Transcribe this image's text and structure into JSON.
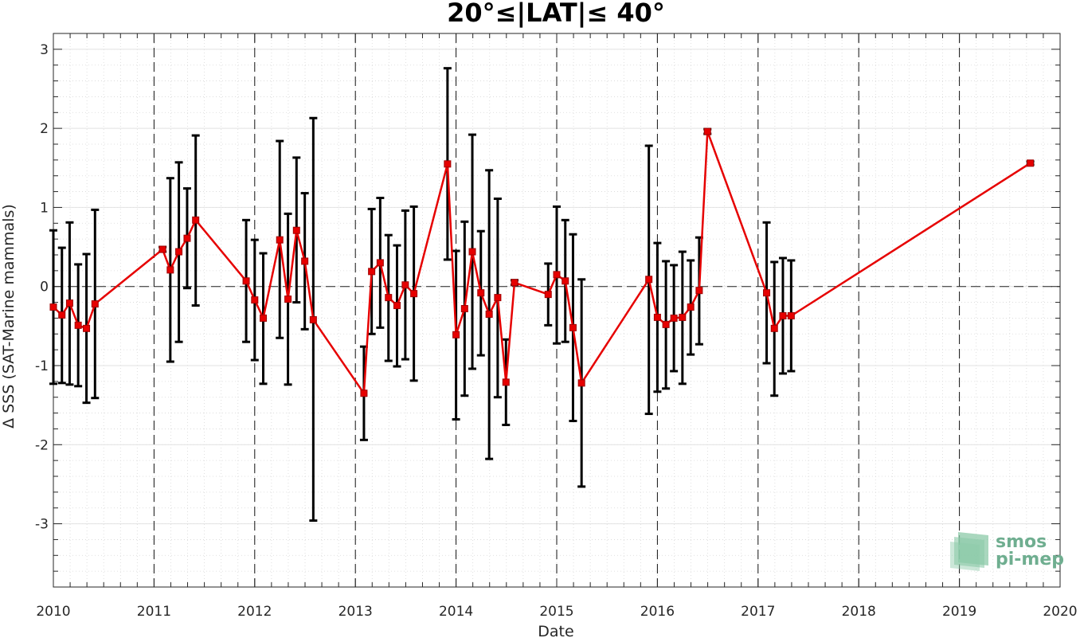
{
  "chart_data": {
    "type": "line",
    "title": "20°≤|LAT|≤ 40°",
    "xlabel": "Date",
    "ylabel": "Δ SSS (SAT-Marine mammals)",
    "xlim": [
      "2010-01-01",
      "2020-01-01"
    ],
    "ylim": [
      -3.8,
      3.2
    ],
    "x_ticks": [
      "2010",
      "2011",
      "2012",
      "2013",
      "2014",
      "2015",
      "2016",
      "2017",
      "2018",
      "2019",
      "2020"
    ],
    "y_ticks": [
      "-3",
      "-2",
      "-1",
      "0",
      "1",
      "2",
      "3"
    ],
    "grid": true,
    "zero_line": true,
    "year_separators": true,
    "series_color": "#e60000",
    "errorbar_color": "#000000",
    "series": [
      {
        "points": [
          {
            "date": "2010-01-01",
            "y": -0.26,
            "lo": -1.23,
            "hi": 0.71
          },
          {
            "date": "2010-02-01",
            "y": -0.36,
            "lo": -1.22,
            "hi": 0.49
          },
          {
            "date": "2010-03-01",
            "y": -0.21,
            "lo": -1.24,
            "hi": 0.81
          },
          {
            "date": "2010-04-01",
            "y": -0.49,
            "lo": -1.26,
            "hi": 0.28
          },
          {
            "date": "2010-05-01",
            "y": -0.53,
            "lo": -1.47,
            "hi": 0.41
          },
          {
            "date": "2010-06-01",
            "y": -0.22,
            "lo": -1.41,
            "hi": 0.97
          },
          {
            "date": "2011-02-01",
            "y": 0.47,
            "lo": 0.44,
            "hi": 0.5
          },
          {
            "date": "2011-03-01",
            "y": 0.21,
            "lo": -0.95,
            "hi": 1.37
          },
          {
            "date": "2011-04-01",
            "y": 0.44,
            "lo": -0.7,
            "hi": 1.57
          },
          {
            "date": "2011-05-01",
            "y": 0.61,
            "lo": -0.02,
            "hi": 1.24
          },
          {
            "date": "2011-06-01",
            "y": 0.84,
            "lo": -0.24,
            "hi": 1.91
          },
          {
            "date": "2011-12-01",
            "y": 0.07,
            "lo": -0.7,
            "hi": 0.84
          },
          {
            "date": "2012-01-01",
            "y": -0.17,
            "lo": -0.93,
            "hi": 0.59
          },
          {
            "date": "2012-02-01",
            "y": -0.4,
            "lo": -1.23,
            "hi": 0.42
          },
          {
            "date": "2012-04-01",
            "y": 0.59,
            "lo": -0.65,
            "hi": 1.84
          },
          {
            "date": "2012-05-01",
            "y": -0.16,
            "lo": -1.24,
            "hi": 0.92
          },
          {
            "date": "2012-06-01",
            "y": 0.71,
            "lo": -0.2,
            "hi": 1.63
          },
          {
            "date": "2012-07-01",
            "y": 0.32,
            "lo": -0.54,
            "hi": 1.18
          },
          {
            "date": "2012-08-01",
            "y": -0.42,
            "lo": -2.96,
            "hi": 2.13
          },
          {
            "date": "2013-02-01",
            "y": -1.35,
            "lo": -1.94,
            "hi": -0.76
          },
          {
            "date": "2013-03-01",
            "y": 0.19,
            "lo": -0.6,
            "hi": 0.98
          },
          {
            "date": "2013-04-01",
            "y": 0.3,
            "lo": -0.52,
            "hi": 1.12
          },
          {
            "date": "2013-05-01",
            "y": -0.14,
            "lo": -0.94,
            "hi": 0.65
          },
          {
            "date": "2013-06-01",
            "y": -0.24,
            "lo": -1.01,
            "hi": 0.52
          },
          {
            "date": "2013-07-01",
            "y": 0.02,
            "lo": -0.92,
            "hi": 0.96
          },
          {
            "date": "2013-08-01",
            "y": -0.09,
            "lo": -1.19,
            "hi": 1.01
          },
          {
            "date": "2013-12-01",
            "y": 1.55,
            "lo": 0.34,
            "hi": 2.76
          },
          {
            "date": "2014-01-01",
            "y": -0.61,
            "lo": -1.68,
            "hi": 0.45
          },
          {
            "date": "2014-02-01",
            "y": -0.28,
            "lo": -1.38,
            "hi": 0.82
          },
          {
            "date": "2014-03-01",
            "y": 0.44,
            "lo": -1.04,
            "hi": 1.92
          },
          {
            "date": "2014-04-01",
            "y": -0.08,
            "lo": -0.87,
            "hi": 0.7
          },
          {
            "date": "2014-05-01",
            "y": -0.35,
            "lo": -2.18,
            "hi": 1.47
          },
          {
            "date": "2014-06-01",
            "y": -0.14,
            "lo": -1.4,
            "hi": 1.11
          },
          {
            "date": "2014-07-01",
            "y": -1.21,
            "lo": -1.75,
            "hi": -0.67
          },
          {
            "date": "2014-08-01",
            "y": 0.05,
            "lo": 0.02,
            "hi": 0.08
          },
          {
            "date": "2014-12-01",
            "y": -0.1,
            "lo": -0.49,
            "hi": 0.29
          },
          {
            "date": "2015-01-01",
            "y": 0.15,
            "lo": -0.72,
            "hi": 1.01
          },
          {
            "date": "2015-02-01",
            "y": 0.07,
            "lo": -0.7,
            "hi": 0.84
          },
          {
            "date": "2015-03-01",
            "y": -0.52,
            "lo": -1.7,
            "hi": 0.66
          },
          {
            "date": "2015-04-01",
            "y": -1.22,
            "lo": -2.53,
            "hi": 0.09
          },
          {
            "date": "2015-12-01",
            "y": 0.09,
            "lo": -1.61,
            "hi": 1.78
          },
          {
            "date": "2016-01-01",
            "y": -0.39,
            "lo": -1.33,
            "hi": 0.55
          },
          {
            "date": "2016-02-01",
            "y": -0.48,
            "lo": -1.29,
            "hi": 0.32
          },
          {
            "date": "2016-03-01",
            "y": -0.4,
            "lo": -1.07,
            "hi": 0.27
          },
          {
            "date": "2016-04-01",
            "y": -0.39,
            "lo": -1.23,
            "hi": 0.44
          },
          {
            "date": "2016-05-01",
            "y": -0.26,
            "lo": -0.86,
            "hi": 0.33
          },
          {
            "date": "2016-06-01",
            "y": -0.05,
            "lo": -0.73,
            "hi": 0.62
          },
          {
            "date": "2016-07-01",
            "y": 1.96,
            "lo": 1.93,
            "hi": 1.99
          },
          {
            "date": "2017-02-01",
            "y": -0.08,
            "lo": -0.97,
            "hi": 0.81
          },
          {
            "date": "2017-03-01",
            "y": -0.53,
            "lo": -1.38,
            "hi": 0.31
          },
          {
            "date": "2017-04-01",
            "y": -0.37,
            "lo": -1.1,
            "hi": 0.36
          },
          {
            "date": "2017-05-01",
            "y": -0.37,
            "lo": -1.07,
            "hi": 0.33
          },
          {
            "date": "2019-09-15",
            "y": 1.56,
            "lo": 1.54,
            "hi": 1.58
          }
        ]
      }
    ]
  },
  "logo": {
    "line1": "smos",
    "line2": "pi-mep",
    "color_text": "#6fae90",
    "color_mark": "#8cc9a8"
  }
}
